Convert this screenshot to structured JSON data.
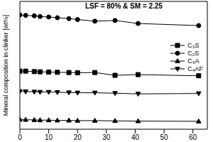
{
  "chart_data": {
    "type": "line",
    "annotation": "LSF = 80% & SM = 2.25",
    "y_label": "Mineral composition in clinker [wt%]",
    "x": [
      0,
      2,
      5,
      7,
      10,
      13,
      17,
      20,
      26,
      33,
      41,
      62
    ],
    "series": [
      {
        "name": "C₃S",
        "color": "#000000",
        "marker": "square",
        "values": [
          25.0,
          25.0,
          24.8,
          24.7,
          24.6,
          24.5,
          24.4,
          24.3,
          24.4,
          23.2,
          23.5,
          23.0
        ]
      },
      {
        "name": "C₂S",
        "color": "#000000",
        "marker": "circle",
        "values": [
          49.2,
          49.0,
          48.8,
          48.5,
          48.3,
          48.0,
          47.6,
          47.2,
          46.5,
          46.8,
          45.5,
          44.6
        ]
      },
      {
        "name": "C₃A",
        "color": "#000000",
        "marker": "triangle-up",
        "values": [
          4.2,
          4.1,
          4.0,
          3.9,
          3.9,
          3.8,
          3.8,
          3.7,
          3.7,
          3.6,
          3.5,
          3.4
        ]
      },
      {
        "name": "C₄AF",
        "color": "#000000",
        "marker": "triangle-down",
        "values": [
          16.3,
          16.2,
          16.1,
          16.0,
          16.0,
          15.9,
          15.8,
          15.7,
          15.7,
          15.5,
          15.2,
          15.4
        ]
      }
    ],
    "xlim": [
      0,
      65
    ],
    "xticks": [
      0,
      10,
      20,
      30,
      40,
      50,
      60
    ],
    "ylim": [
      0,
      55
    ],
    "yticks": [
      0,
      10,
      20,
      30,
      40,
      50
    ],
    "tick_labels": "x",
    "legend": "right",
    "grid": false
  }
}
